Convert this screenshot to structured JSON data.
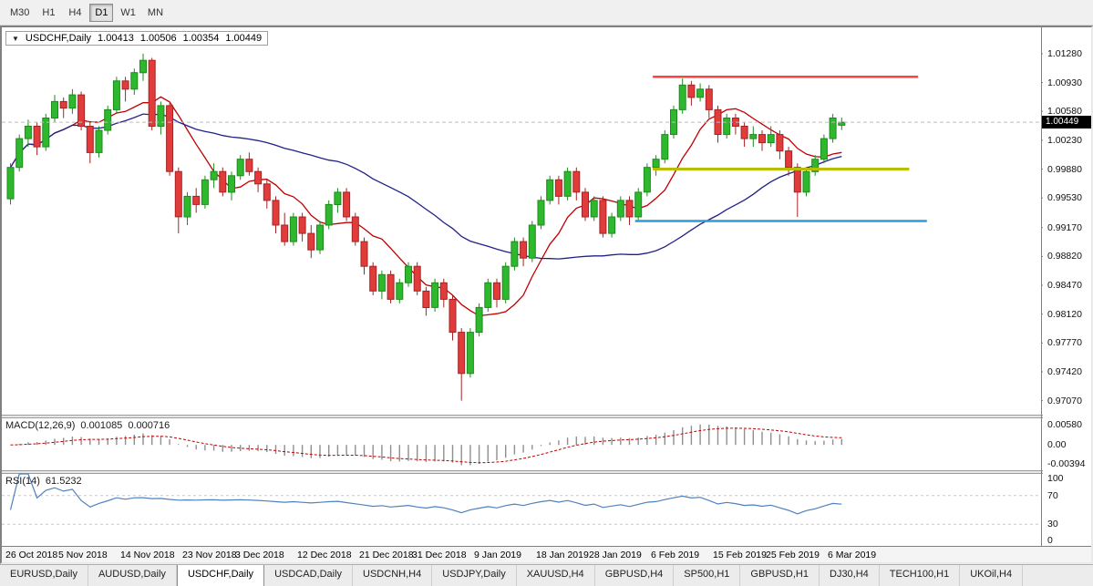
{
  "toolbar": {
    "timeframes": [
      {
        "label": "M30",
        "active": false
      },
      {
        "label": "H1",
        "active": false
      },
      {
        "label": "H4",
        "active": false
      },
      {
        "label": "D1",
        "active": true
      },
      {
        "label": "W1",
        "active": false
      },
      {
        "label": "MN",
        "active": false
      }
    ]
  },
  "chart": {
    "symbol_label": "USDCHF,Daily",
    "dropdown_arrow": "▼",
    "ohlc": {
      "open": "1.00413",
      "high": "1.00506",
      "low": "1.00354",
      "close": "1.00449"
    },
    "price_axis": {
      "labels": [
        "1.01280",
        "1.00930",
        "1.00580",
        "1.00230",
        "0.99880",
        "0.99530",
        "0.99170",
        "0.98820",
        "0.98470",
        "0.98120",
        "0.97770",
        "0.97420",
        "0.97070"
      ],
      "tag": "1.00449"
    }
  },
  "macd": {
    "label": "MACD(12,26,9)",
    "main_value": "0.001085",
    "signal_value": "0.000716",
    "axis_labels": [
      "0.00580",
      "0.00",
      "-0.00394"
    ]
  },
  "rsi": {
    "label": "RSI(14)",
    "value": "61.5232",
    "axis_labels": [
      "100",
      "70",
      "30",
      "0"
    ],
    "levels": [
      70,
      30
    ]
  },
  "date_labels": [
    {
      "label": "26 Oct 2018",
      "index": 0
    },
    {
      "label": "5 Nov 2018",
      "index": 6
    },
    {
      "label": "14 Nov 2018",
      "index": 13
    },
    {
      "label": "23 Nov 2018",
      "index": 20
    },
    {
      "label": "3 Dec 2018",
      "index": 26
    },
    {
      "label": "12 Dec 2018",
      "index": 33
    },
    {
      "label": "21 Dec 2018",
      "index": 40
    },
    {
      "label": "31 Dec 2018",
      "index": 46
    },
    {
      "label": "9 Jan 2019",
      "index": 53
    },
    {
      "label": "18 Jan 2019",
      "index": 60
    },
    {
      "label": "28 Jan 2019",
      "index": 66
    },
    {
      "label": "6 Feb 2019",
      "index": 73
    },
    {
      "label": "15 Feb 2019",
      "index": 80
    },
    {
      "label": "25 Feb 2019",
      "index": 86
    },
    {
      "label": "6 Mar 2019",
      "index": 93
    }
  ],
  "tabs": [
    {
      "label": "EURUSD,Daily",
      "active": false
    },
    {
      "label": "AUDUSD,Daily",
      "active": false
    },
    {
      "label": "USDCHF,Daily",
      "active": true
    },
    {
      "label": "USDCAD,Daily",
      "active": false
    },
    {
      "label": "USDCNH,H4",
      "active": false
    },
    {
      "label": "USDJPY,Daily",
      "active": false
    },
    {
      "label": "XAUUSD,H4",
      "active": false
    },
    {
      "label": "GBPUSD,H4",
      "active": false
    },
    {
      "label": "SP500,H1",
      "active": false
    },
    {
      "label": "GBPUSD,H1",
      "active": false
    },
    {
      "label": "DJ30,H4",
      "active": false
    },
    {
      "label": "TECH100,H1",
      "active": false
    },
    {
      "label": "UKOil,H4",
      "active": false
    }
  ],
  "colors": {
    "candle_up": "#2eb82e",
    "candle_up_border": "#1e8a1e",
    "candle_down": "#e23b3b",
    "candle_down_border": "#a32424",
    "ma_fast": "#c00000",
    "ma_slow": "#20208c",
    "hline_red": "#ff4040",
    "hline_yellow": "#b8bf00",
    "hline_blue": "#2e9bd6",
    "macd_hist": "#8f8f8f",
    "macd_signal": "#c00000",
    "rsi_line": "#4f81bd",
    "tag_bg": "#000000",
    "tag_text": "#ffffff"
  },
  "chart_data": {
    "type": "candlestick",
    "symbol": "USDCHF",
    "timeframe": "Daily",
    "price_range": {
      "max": 1.016,
      "min": 0.969
    },
    "ma": [
      {
        "name": "ma-fast-line",
        "period": 8,
        "color_key": "ma_fast"
      },
      {
        "name": "ma-slow-line",
        "period": 34,
        "color_key": "ma_slow"
      }
    ],
    "macd_params": [
      12,
      26,
      9
    ],
    "rsi_period": 14,
    "hlines": [
      {
        "name": "resistance-line",
        "price": 1.01,
        "from": 73,
        "to": 103,
        "color": "#ff4040",
        "width": 2.5
      },
      {
        "name": "support-line-yellow",
        "price": 0.9988,
        "from": 73,
        "to": 102,
        "color": "#b8bf00",
        "width": 3
      },
      {
        "name": "support-line-blue",
        "price": 0.9925,
        "from": 71,
        "to": 104,
        "color": "#2e9bd6",
        "width": 2.5
      }
    ],
    "candles": [
      [
        0.9952,
        0.9995,
        0.9945,
        0.999
      ],
      [
        0.999,
        1.003,
        0.9985,
        1.0025
      ],
      [
        1.0025,
        1.0048,
        1.0015,
        1.004
      ],
      [
        1.004,
        1.0045,
        1.0005,
        1.0015
      ],
      [
        1.0015,
        1.0055,
        1.001,
        1.005
      ],
      [
        1.005,
        1.0078,
        1.0045,
        1.007
      ],
      [
        1.007,
        1.0075,
        1.005,
        1.0062
      ],
      [
        1.0062,
        1.0085,
        1.0055,
        1.0078
      ],
      [
        1.0078,
        1.0082,
        1.0035,
        1.004
      ],
      [
        1.004,
        1.0045,
        0.9995,
        1.0008
      ],
      [
        1.0008,
        1.004,
        1.0002,
        1.0035
      ],
      [
        1.0035,
        1.0065,
        1.003,
        1.006
      ],
      [
        1.006,
        1.01,
        1.0055,
        1.0095
      ],
      [
        1.0095,
        1.01,
        1.007,
        1.0085
      ],
      [
        1.0085,
        1.011,
        1.0078,
        1.0105
      ],
      [
        1.0105,
        1.0128,
        1.0095,
        1.012
      ],
      [
        1.012,
        1.0123,
        1.0035,
        1.004
      ],
      [
        1.004,
        1.007,
        1.003,
        1.0065
      ],
      [
        1.0065,
        1.0068,
        0.998,
        0.9985
      ],
      [
        0.9985,
        0.999,
        0.991,
        0.993
      ],
      [
        0.993,
        0.996,
        0.992,
        0.9955
      ],
      [
        0.9955,
        0.9965,
        0.9935,
        0.9945
      ],
      [
        0.9945,
        0.998,
        0.994,
        0.9975
      ],
      [
        0.9975,
        0.9995,
        0.9965,
        0.9985
      ],
      [
        0.9985,
        0.999,
        0.9955,
        0.996
      ],
      [
        0.996,
        0.9985,
        0.995,
        0.998
      ],
      [
        0.998,
        1.0005,
        0.9975,
        1.0
      ],
      [
        1.0,
        1.0008,
        0.998,
        0.9985
      ],
      [
        0.9985,
        0.999,
        0.996,
        0.997
      ],
      [
        0.997,
        0.9975,
        0.994,
        0.995
      ],
      [
        0.995,
        0.9955,
        0.991,
        0.992
      ],
      [
        0.992,
        0.9935,
        0.9895,
        0.99
      ],
      [
        0.99,
        0.9935,
        0.9895,
        0.993
      ],
      [
        0.993,
        0.9935,
        0.99,
        0.991
      ],
      [
        0.991,
        0.992,
        0.988,
        0.989
      ],
      [
        0.989,
        0.9925,
        0.9885,
        0.992
      ],
      [
        0.992,
        0.995,
        0.9915,
        0.9945
      ],
      [
        0.9945,
        0.9965,
        0.9935,
        0.996
      ],
      [
        0.996,
        0.9965,
        0.9925,
        0.993
      ],
      [
        0.993,
        0.9935,
        0.9895,
        0.99
      ],
      [
        0.99,
        0.9905,
        0.986,
        0.987
      ],
      [
        0.987,
        0.9875,
        0.9835,
        0.984
      ],
      [
        0.984,
        0.9865,
        0.983,
        0.986
      ],
      [
        0.986,
        0.9865,
        0.9825,
        0.983
      ],
      [
        0.983,
        0.9855,
        0.9825,
        0.985
      ],
      [
        0.985,
        0.9875,
        0.9845,
        0.987
      ],
      [
        0.987,
        0.9875,
        0.9835,
        0.984
      ],
      [
        0.984,
        0.9845,
        0.981,
        0.982
      ],
      [
        0.982,
        0.9855,
        0.9815,
        0.985
      ],
      [
        0.985,
        0.9855,
        0.982,
        0.983
      ],
      [
        0.983,
        0.9835,
        0.978,
        0.979
      ],
      [
        0.979,
        0.9795,
        0.9707,
        0.974
      ],
      [
        0.974,
        0.9795,
        0.9735,
        0.979
      ],
      [
        0.979,
        0.9825,
        0.9785,
        0.982
      ],
      [
        0.982,
        0.9855,
        0.9815,
        0.985
      ],
      [
        0.985,
        0.9855,
        0.982,
        0.983
      ],
      [
        0.983,
        0.9875,
        0.9825,
        0.987
      ],
      [
        0.987,
        0.9905,
        0.9865,
        0.99
      ],
      [
        0.99,
        0.9905,
        0.987,
        0.988
      ],
      [
        0.988,
        0.9925,
        0.9875,
        0.992
      ],
      [
        0.992,
        0.9955,
        0.9915,
        0.995
      ],
      [
        0.995,
        0.998,
        0.9945,
        0.9975
      ],
      [
        0.9975,
        0.998,
        0.9945,
        0.9955
      ],
      [
        0.9955,
        0.999,
        0.995,
        0.9985
      ],
      [
        0.9985,
        0.999,
        0.995,
        0.996
      ],
      [
        0.996,
        0.9965,
        0.9925,
        0.993
      ],
      [
        0.993,
        0.9955,
        0.9925,
        0.995
      ],
      [
        0.995,
        0.9955,
        0.9905,
        0.991
      ],
      [
        0.991,
        0.9935,
        0.9905,
        0.993
      ],
      [
        0.993,
        0.9955,
        0.9925,
        0.995
      ],
      [
        0.995,
        0.9955,
        0.992,
        0.993
      ],
      [
        0.993,
        0.9965,
        0.9925,
        0.996
      ],
      [
        0.996,
        0.9995,
        0.9955,
        0.999
      ],
      [
        0.999,
        1.0005,
        0.998,
        1.0
      ],
      [
        1.0,
        1.0035,
        0.9995,
        1.003
      ],
      [
        1.003,
        1.0065,
        1.0025,
        1.006
      ],
      [
        1.006,
        1.0098,
        1.0055,
        1.009
      ],
      [
        1.009,
        1.0095,
        1.0065,
        1.0075
      ],
      [
        1.0075,
        1.0092,
        1.007,
        1.0085
      ],
      [
        1.0085,
        1.009,
        1.005,
        1.006
      ],
      [
        1.006,
        1.0065,
        1.002,
        1.003
      ],
      [
        1.003,
        1.0055,
        1.0025,
        1.005
      ],
      [
        1.005,
        1.0055,
        1.003,
        1.004
      ],
      [
        1.004,
        1.0045,
        1.0015,
        1.0025
      ],
      [
        1.0025,
        1.004,
        1.0015,
        1.003
      ],
      [
        1.003,
        1.0035,
        1.001,
        1.002
      ],
      [
        1.002,
        1.004,
        1.0015,
        1.003
      ],
      [
        1.003,
        1.0035,
        1.0,
        1.001
      ],
      [
        1.001,
        1.0015,
        0.998,
        0.999
      ],
      [
        0.999,
        0.9995,
        0.993,
        0.996
      ],
      [
        0.996,
        0.999,
        0.9955,
        0.9985
      ],
      [
        0.9985,
        1.0005,
        0.998,
        1.0
      ],
      [
        1.0,
        1.003,
        0.9995,
        1.0025
      ],
      [
        1.0025,
        1.0055,
        1.002,
        1.005
      ],
      [
        1.00413,
        1.00506,
        1.00354,
        1.00449
      ]
    ]
  }
}
